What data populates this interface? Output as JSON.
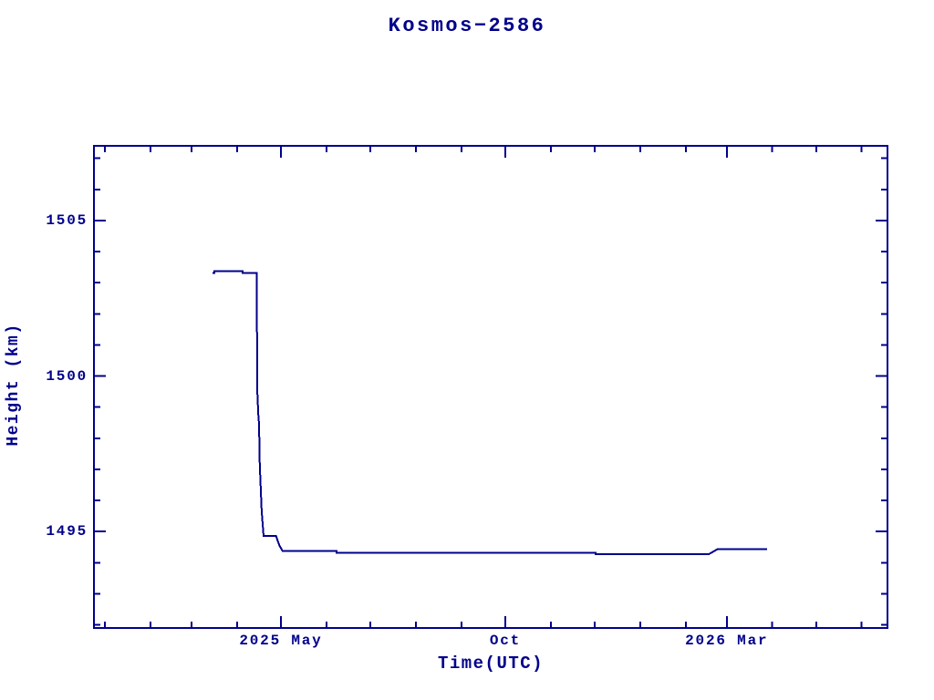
{
  "page": {
    "background": "#ffffff",
    "accent": "#00008b"
  },
  "chart_data": {
    "type": "line",
    "title": "Kosmos−2586",
    "xlabel": "Time(UTC)",
    "ylabel": "Height (km)",
    "frame_color": "#00008b",
    "line_color": "#00008b",
    "grid": false,
    "legend": "none",
    "x_axis": {
      "unit": "days since 2025-01-01 (UTC)",
      "day_zero_date": "2025-01-01",
      "min_day": -7.5,
      "max_day": 533.6,
      "ticks": [
        {
          "day": 0
        },
        {
          "day": 31
        },
        {
          "day": 59
        },
        {
          "day": 90
        },
        {
          "day": 120,
          "label": "2025 May",
          "major": true
        },
        {
          "day": 151
        },
        {
          "day": 181
        },
        {
          "day": 212
        },
        {
          "day": 243
        },
        {
          "day": 273,
          "label": "Oct",
          "major": true
        },
        {
          "day": 304
        },
        {
          "day": 334
        },
        {
          "day": 365
        },
        {
          "day": 396
        },
        {
          "day": 424,
          "label": "2026 Mar",
          "major": true
        },
        {
          "day": 455
        },
        {
          "day": 485
        },
        {
          "day": 516
        }
      ]
    },
    "y_axis": {
      "unit": "km",
      "min": 1491.9,
      "max": 1507.4,
      "ticks": [
        {
          "value": 1492
        },
        {
          "value": 1493
        },
        {
          "value": 1494
        },
        {
          "value": 1495,
          "label": "1495",
          "major": true
        },
        {
          "value": 1496
        },
        {
          "value": 1497
        },
        {
          "value": 1498
        },
        {
          "value": 1499
        },
        {
          "value": 1500,
          "label": "1500",
          "major": true
        },
        {
          "value": 1501
        },
        {
          "value": 1502
        },
        {
          "value": 1503
        },
        {
          "value": 1504
        },
        {
          "value": 1505,
          "label": "1505",
          "major": true
        },
        {
          "value": 1506
        },
        {
          "value": 1507
        }
      ]
    },
    "series": {
      "name": "height",
      "points": [
        [
          73.3,
          1503.31
        ],
        [
          74.6,
          1503.31
        ],
        [
          74.6,
          1503.37
        ],
        [
          93.9,
          1503.37
        ],
        [
          93.9,
          1503.31
        ],
        [
          103.5,
          1503.31
        ],
        [
          103.8,
          1499.58
        ],
        [
          104.6,
          1498.76
        ],
        [
          105.1,
          1498.47
        ],
        [
          105.6,
          1497.15
        ],
        [
          106.9,
          1495.65
        ],
        [
          108.2,
          1494.86
        ],
        [
          116.7,
          1494.86
        ],
        [
          117.8,
          1494.7
        ],
        [
          119.0,
          1494.55
        ],
        [
          121.2,
          1494.37
        ],
        [
          157.9,
          1494.37
        ],
        [
          157.9,
          1494.32
        ],
        [
          334.6,
          1494.32
        ],
        [
          334.6,
          1494.27
        ],
        [
          411.7,
          1494.27
        ],
        [
          417.9,
          1494.44
        ],
        [
          451.5,
          1494.44
        ]
      ]
    }
  }
}
